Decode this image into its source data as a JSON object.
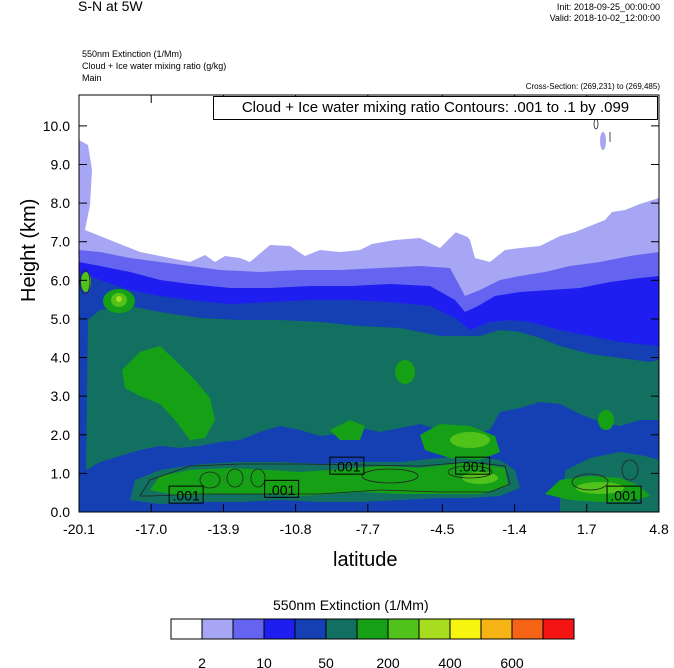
{
  "header": {
    "title": "S-N at 5W",
    "init": "Init: 2018-09-25_00:00:00",
    "valid": "Valid: 2018-10-02_12:00:00",
    "field1": "550nm Extinction   (1/Mm)",
    "field2": "Cloud + Ice water mixing ratio   (g/kg)",
    "field3": "Main",
    "cross_section": "Cross-Section: (269,231) to (269,485)",
    "contour_box": "Cloud + Ice water mixing ratio Contours: .001 to .1 by .099"
  },
  "colorbar": {
    "title": "550nm Extinction  (1/Mm)",
    "colors": [
      "#ffffff",
      "#a6a6f5",
      "#6464f0",
      "#1e1ef0",
      "#1440b4",
      "#127060",
      "#16a016",
      "#50c21a",
      "#a8dc1e",
      "#f5f50f",
      "#f5b414",
      "#f56414",
      "#f51414"
    ],
    "labels": [
      "2",
      "10",
      "50",
      "200",
      "400",
      "600"
    ]
  },
  "chart_data": {
    "type": "heatmap",
    "title": "S-N at 5W",
    "xlabel": "latitude",
    "ylabel": "Height (km)",
    "xlim": [
      -20.1,
      4.8
    ],
    "ylim": [
      0,
      10.8
    ],
    "x_ticks": [
      "-20.1",
      "-17.0",
      "-13.9",
      "-10.8",
      "-7.7",
      "-4.5",
      "-1.4",
      "1.7",
      "4.8"
    ],
    "y_ticks": [
      "0.0",
      "1.0",
      "2.0",
      "3.0",
      "4.0",
      "5.0",
      "6.0",
      "7.0",
      "8.0",
      "9.0",
      "10.0"
    ],
    "contour_labels": [
      {
        "x": -15.5,
        "y": 0.45,
        "text": ".001"
      },
      {
        "x": -11.4,
        "y": 0.6,
        "text": ".001"
      },
      {
        "x": -8.6,
        "y": 1.2,
        "text": ".001"
      },
      {
        "x": -3.2,
        "y": 1.2,
        "text": ".001"
      },
      {
        "x": 3.3,
        "y": 0.45,
        "text": ".001"
      }
    ]
  }
}
